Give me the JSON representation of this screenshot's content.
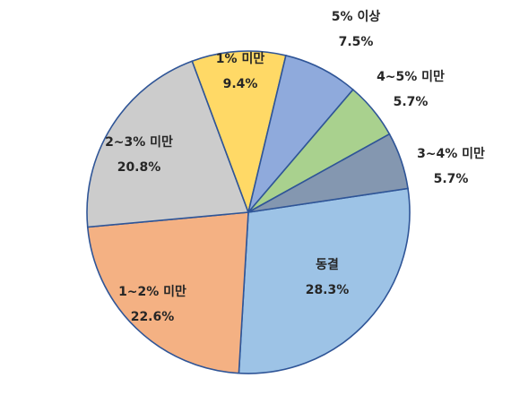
{
  "chart_data": {
    "type": "pie",
    "title": "",
    "slices": [
      {
        "category": "동결",
        "value": 28.3,
        "label": "28.3%",
        "color": "#9dc3e6"
      },
      {
        "category": "1~2% 미만",
        "value": 22.6,
        "label": "22.6%",
        "color": "#f4b183"
      },
      {
        "category": "2~3% 미만",
        "value": 20.8,
        "label": "20.8%",
        "color": "#cccccc"
      },
      {
        "category": "1% 미만",
        "value": 9.4,
        "label": "9.4%",
        "color": "#ffd966"
      },
      {
        "category": "5% 이상",
        "value": 7.5,
        "label": "7.5%",
        "color": "#8faadc"
      },
      {
        "category": "4~5% 미만",
        "value": 5.7,
        "label": "5.7%",
        "color": "#a9d18e"
      },
      {
        "category": "3~4% 미만",
        "value": 5.7,
        "label": "5.7%",
        "color": "#8497b0"
      }
    ]
  }
}
